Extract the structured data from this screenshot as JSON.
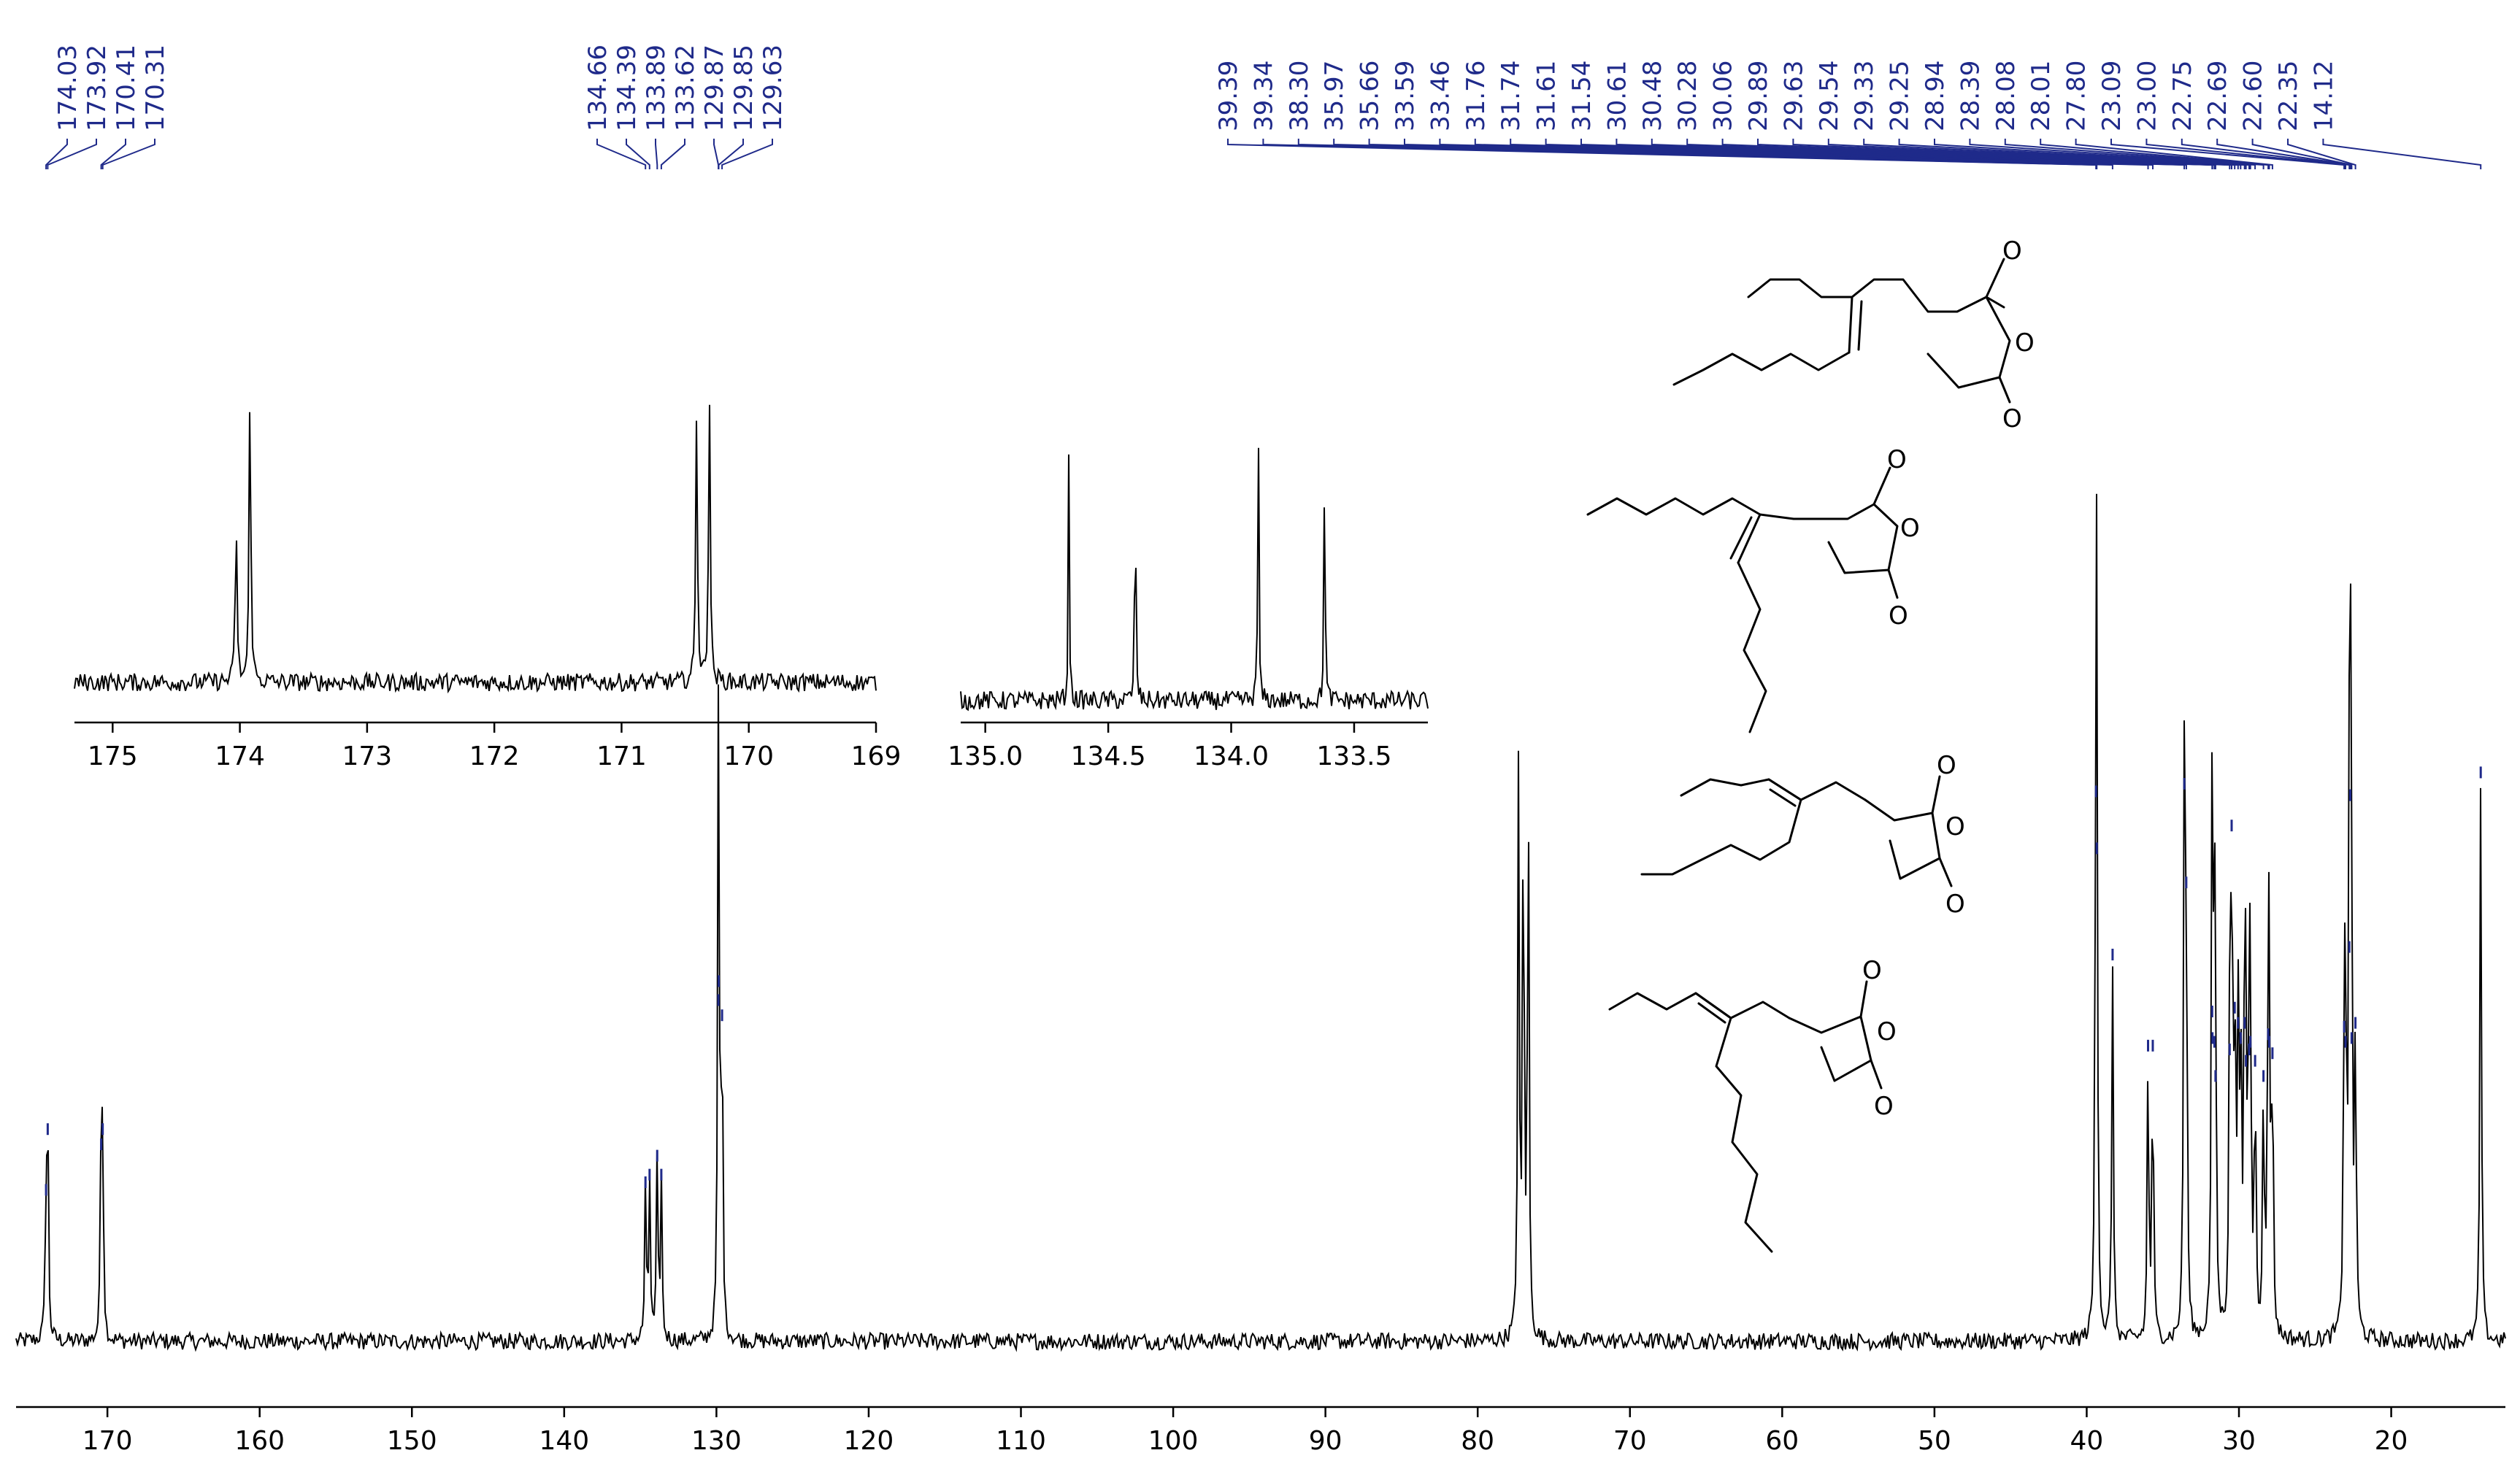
{
  "chart_data": [
    {
      "type": "line",
      "kind": "13C NMR spectrum",
      "xlim": [
        176,
        12.5
      ],
      "x_reversed": true,
      "xticks": [
        170,
        160,
        150,
        140,
        130,
        120,
        110,
        100,
        90,
        80,
        70,
        60,
        50,
        40,
        30,
        20
      ],
      "peak_labels": [
        "174.03",
        "173.92",
        "170.41",
        "170.31",
        "134.66",
        "134.39",
        "133.89",
        "133.62",
        "129.87",
        "129.85",
        "129.63",
        "39.39",
        "39.34",
        "38.30",
        "35.97",
        "35.66",
        "33.59",
        "33.46",
        "31.76",
        "31.74",
        "31.61",
        "31.54",
        "30.61",
        "30.48",
        "30.28",
        "30.06",
        "29.89",
        "29.63",
        "29.54",
        "29.33",
        "29.25",
        "28.94",
        "28.39",
        "28.08",
        "28.01",
        "27.80",
        "23.09",
        "23.00",
        "22.75",
        "22.69",
        "22.60",
        "22.35",
        "14.12"
      ],
      "peaks": [
        {
          "ppm": 174.03,
          "height": 0.38
        },
        {
          "ppm": 173.92,
          "height": 0.54
        },
        {
          "ppm": 170.41,
          "height": 0.5
        },
        {
          "ppm": 170.31,
          "height": 0.54
        },
        {
          "ppm": 134.66,
          "height": 0.4
        },
        {
          "ppm": 134.39,
          "height": 0.42
        },
        {
          "ppm": 133.89,
          "height": 0.47
        },
        {
          "ppm": 133.62,
          "height": 0.42
        },
        {
          "ppm": 129.87,
          "height": 0.88
        },
        {
          "ppm": 129.85,
          "height": 0.93
        },
        {
          "ppm": 129.63,
          "height": 0.84
        },
        {
          "ppm": 77.32,
          "height": 1.5
        },
        {
          "ppm": 77.0,
          "height": 1.52
        },
        {
          "ppm": 76.68,
          "height": 1.51
        },
        {
          "ppm": 39.39,
          "height": 1.43
        },
        {
          "ppm": 39.34,
          "height": 1.28
        },
        {
          "ppm": 38.3,
          "height": 1.0
        },
        {
          "ppm": 35.97,
          "height": 0.76
        },
        {
          "ppm": 35.66,
          "height": 0.76
        },
        {
          "ppm": 33.59,
          "height": 1.45
        },
        {
          "ppm": 33.46,
          "height": 1.19
        },
        {
          "ppm": 31.76,
          "height": 0.85
        },
        {
          "ppm": 31.74,
          "height": 0.78
        },
        {
          "ppm": 31.61,
          "height": 0.77
        },
        {
          "ppm": 31.54,
          "height": 0.68
        },
        {
          "ppm": 30.61,
          "height": 0.75
        },
        {
          "ppm": 30.48,
          "height": 1.34
        },
        {
          "ppm": 30.28,
          "height": 0.86
        },
        {
          "ppm": 30.06,
          "height": 0.82
        },
        {
          "ppm": 29.89,
          "height": 0.78
        },
        {
          "ppm": 29.63,
          "height": 0.82
        },
        {
          "ppm": 29.54,
          "height": 0.72
        },
        {
          "ppm": 29.33,
          "height": 0.75
        },
        {
          "ppm": 29.25,
          "height": 0.77
        },
        {
          "ppm": 28.94,
          "height": 0.72
        },
        {
          "ppm": 28.39,
          "height": 0.68
        },
        {
          "ppm": 28.08,
          "height": 0.79
        },
        {
          "ppm": 28.01,
          "height": 0.77
        },
        {
          "ppm": 27.8,
          "height": 0.74
        },
        {
          "ppm": 23.09,
          "height": 0.81
        },
        {
          "ppm": 23.0,
          "height": 0.77
        },
        {
          "ppm": 22.75,
          "height": 1.02
        },
        {
          "ppm": 22.69,
          "height": 1.42
        },
        {
          "ppm": 22.6,
          "height": 0.78
        },
        {
          "ppm": 22.35,
          "height": 0.82
        },
        {
          "ppm": 14.12,
          "height": 1.48
        }
      ]
    },
    {
      "type": "line",
      "kind": "inset spectrum",
      "xlim": [
        175.3,
        169
      ],
      "xticks": [
        "175",
        "174",
        "173",
        "172",
        "171",
        "170",
        "169"
      ],
      "peaks": [
        {
          "ppm": 174.03,
          "height": 0.56
        },
        {
          "ppm": 173.92,
          "height": 1.0
        },
        {
          "ppm": 170.41,
          "height": 0.92
        },
        {
          "ppm": 170.31,
          "height": 0.98
        }
      ]
    },
    {
      "type": "line",
      "kind": "inset spectrum",
      "xlim": [
        135.1,
        133.2
      ],
      "xticks": [
        "135.0",
        "134.5",
        "134.0",
        "133.5"
      ],
      "peaks": [
        {
          "ppm": 134.66,
          "height": 0.81
        },
        {
          "ppm": 134.39,
          "height": 0.88
        },
        {
          "ppm": 133.89,
          "height": 1.0
        },
        {
          "ppm": 133.62,
          "height": 0.89
        }
      ]
    }
  ],
  "structures": [
    {
      "atoms": [
        "O",
        "O",
        "O"
      ]
    },
    {
      "atoms": [
        "O",
        "O",
        "O"
      ]
    },
    {
      "atoms": [
        "O",
        "O",
        "O"
      ]
    },
    {
      "atoms": [
        "O",
        "O",
        "O"
      ]
    }
  ]
}
